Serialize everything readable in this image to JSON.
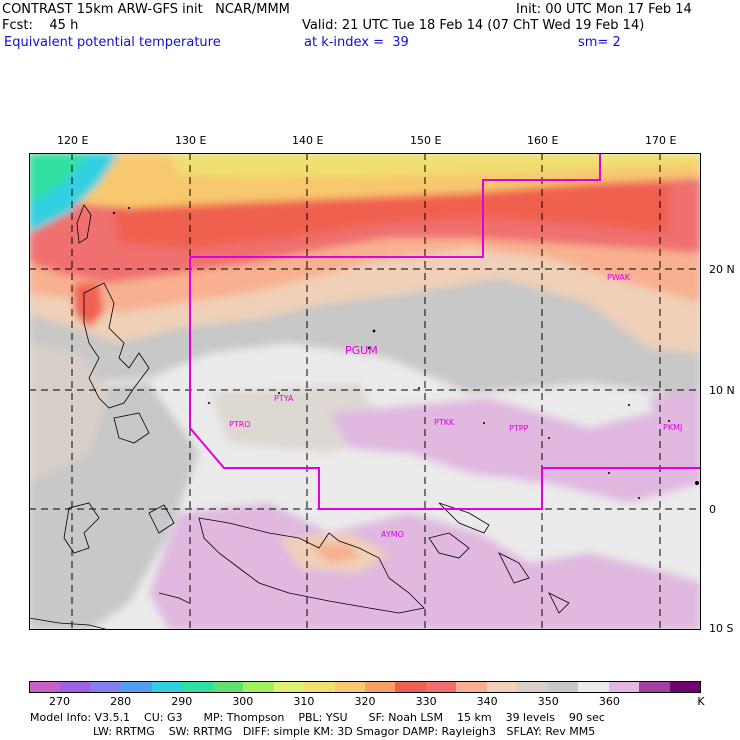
{
  "header": {
    "title": "CONTRAST 15km ARW-GFS init   NCAR/MMM",
    "init": "Init: 00 UTC Mon 17 Feb 14",
    "fcst_label": "Fcst:    45 h",
    "valid": "Valid: 21 UTC Tue 18 Feb 14 (07 ChT Wed 19 Feb 14)",
    "field": "Equivalent potential temperature",
    "level": "at k-index =  39",
    "smooth": "sm= 2"
  },
  "map": {
    "lon_labels": [
      "120 E",
      "130 E",
      "140 E",
      "150 E",
      "160 E",
      "170 E"
    ],
    "lat_labels": [
      "20 N",
      "10 N",
      "0",
      "10 S"
    ],
    "stations": [
      "PWAK",
      "PGUM",
      "PTYA",
      "PTRO",
      "PTKK",
      "PTPP",
      "PKMJ",
      "AYMO"
    ],
    "boundary_color": "#e000e0",
    "grid_style": "dashed"
  },
  "colorbar": {
    "colors": [
      "#c860c8",
      "#a060e0",
      "#8080f0",
      "#50a0f0",
      "#30d0e0",
      "#30e0a0",
      "#60e070",
      "#a0f060",
      "#e0f070",
      "#f0e070",
      "#f8c870",
      "#f8a060",
      "#f06050",
      "#f07070",
      "#f8b090",
      "#f0d0b8",
      "#d8d0c8",
      "#c8c8c8",
      "#ebebeb",
      "#e0b8e0",
      "#a040a0",
      "#700070"
    ],
    "tick_labels": [
      "270",
      "280",
      "290",
      "300",
      "310",
      "320",
      "330",
      "340",
      "350",
      "360",
      "K"
    ]
  },
  "footer": {
    "line1": "Model Info: V3.5.1    CU: G3      MP: Thompson    PBL: YSU      SF: Noah LSM    15 km    39 levels    90 sec",
    "line2": "                  LW: RRTMG    SW: RRTMG   DIFF: simple KM: 3D Smagor DAMP: Rayleigh3   SFLAY: Rev MM5"
  }
}
